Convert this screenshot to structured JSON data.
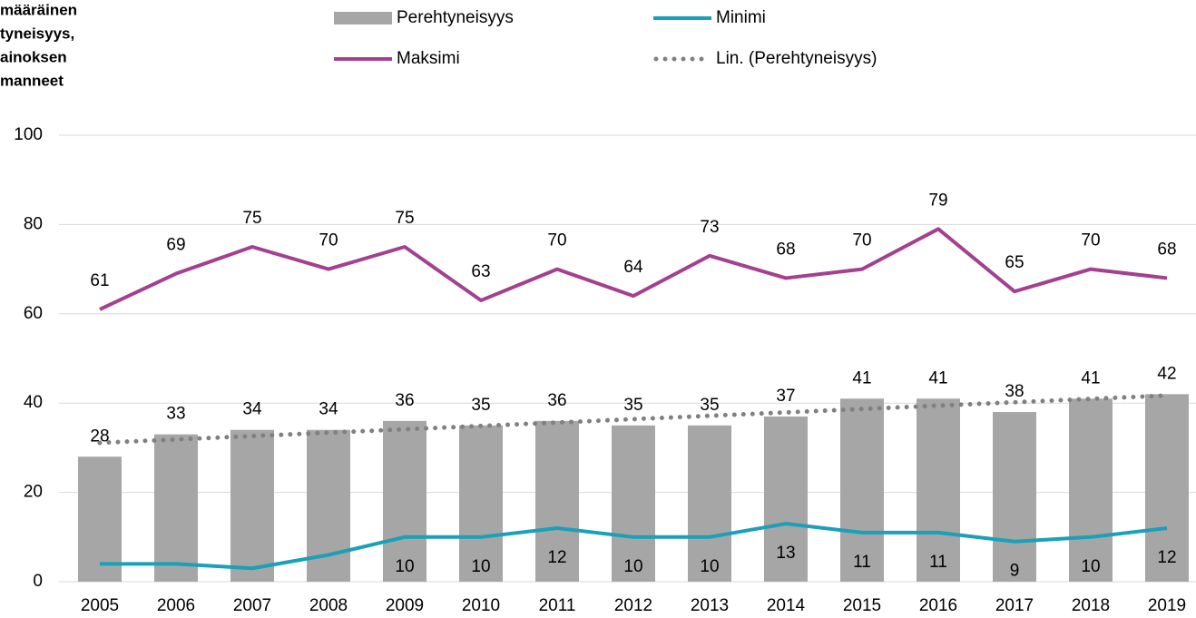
{
  "chart_data": {
    "type": "bar_line",
    "title_lines": [
      "määräinen",
      "tyneisyys,",
      "ainoksen",
      "manneet"
    ],
    "categories": [
      "2005",
      "2006",
      "2007",
      "2008",
      "2009",
      "2010",
      "2011",
      "2012",
      "2013",
      "2014",
      "2015",
      "2016",
      "2017",
      "2018",
      "2019"
    ],
    "ylim": [
      0,
      100
    ],
    "yticks": [
      0,
      20,
      40,
      60,
      80,
      100
    ],
    "grid": true,
    "series": [
      {
        "name": "Perehtyneisyys",
        "kind": "bar",
        "color": "#a6a6a6",
        "values": [
          28,
          33,
          34,
          34,
          36,
          35,
          36,
          35,
          35,
          37,
          41,
          41,
          38,
          41,
          42
        ]
      },
      {
        "name": "Minimi",
        "kind": "line",
        "color": "#1aa0b8",
        "values": [
          4,
          4,
          3,
          6,
          10,
          10,
          12,
          10,
          10,
          13,
          11,
          11,
          9,
          10,
          12
        ],
        "value_labels": [
          null,
          null,
          null,
          null,
          "10",
          "10",
          "12",
          "10",
          "10",
          "13",
          "11",
          "11",
          "9",
          "10",
          "12"
        ]
      },
      {
        "name": "Maksimi",
        "kind": "line",
        "color": "#a3408f",
        "values": [
          61,
          69,
          75,
          70,
          75,
          63,
          70,
          64,
          73,
          68,
          70,
          79,
          65,
          70,
          68
        ]
      }
    ],
    "trendline": {
      "name": "Lin. (Perehtyneisyys)",
      "of_series": 0,
      "color": "#808080"
    }
  }
}
